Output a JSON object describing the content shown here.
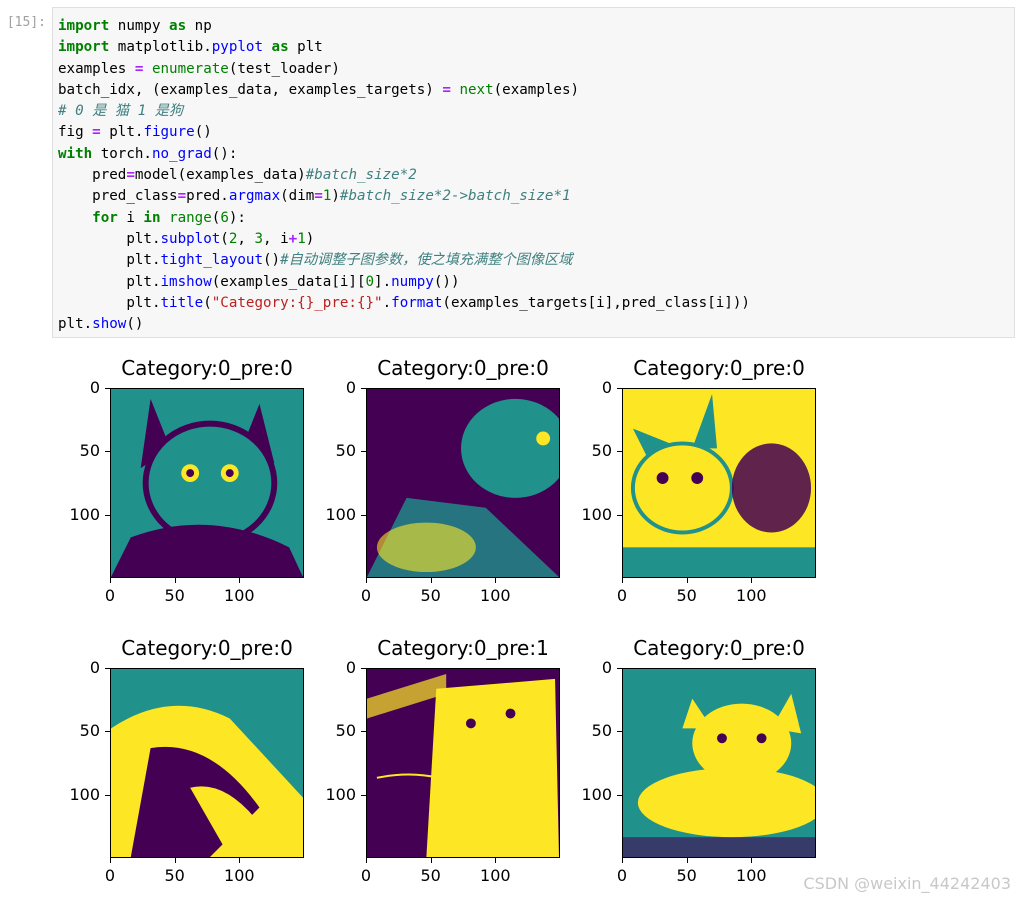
{
  "cell": {
    "prompt": "[15]:",
    "code_lines": [
      [
        [
          "kw",
          "import"
        ],
        [
          "t",
          " numpy "
        ],
        [
          "kw",
          "as"
        ],
        [
          "t",
          " np"
        ]
      ],
      [
        [
          "kw",
          "import"
        ],
        [
          "t",
          " matplotlib."
        ],
        [
          "fn",
          "pyplot"
        ],
        [
          "t",
          " "
        ],
        [
          "kw",
          "as"
        ],
        [
          "t",
          " plt"
        ]
      ],
      [
        [
          "t",
          "examples "
        ],
        [
          "op",
          "="
        ],
        [
          "t",
          " "
        ],
        [
          "bi",
          "enumerate"
        ],
        [
          "t",
          "(test_loader)"
        ]
      ],
      [
        [
          "t",
          "batch_idx, (examples_data, examples_targets) "
        ],
        [
          "op",
          "="
        ],
        [
          "t",
          " "
        ],
        [
          "bi",
          "next"
        ],
        [
          "t",
          "(examples)"
        ]
      ],
      [
        [
          "cm",
          "# 0 是 猫 1 是狗"
        ]
      ],
      [
        [
          "t",
          "fig "
        ],
        [
          "op",
          "="
        ],
        [
          "t",
          " plt."
        ],
        [
          "fn",
          "figure"
        ],
        [
          "t",
          "()"
        ]
      ],
      [
        [
          "kw",
          "with"
        ],
        [
          "t",
          " torch."
        ],
        [
          "fn",
          "no_grad"
        ],
        [
          "t",
          "():"
        ]
      ],
      [
        [
          "t",
          "    pred"
        ],
        [
          "op",
          "="
        ],
        [
          "t",
          "model(examples_data)"
        ],
        [
          "cm",
          "#batch_size*2"
        ]
      ],
      [
        [
          "t",
          "    pred_class"
        ],
        [
          "op",
          "="
        ],
        [
          "t",
          "pred."
        ],
        [
          "fn",
          "argmax"
        ],
        [
          "t",
          "(dim"
        ],
        [
          "op",
          "="
        ],
        [
          "num",
          "1"
        ],
        [
          "t",
          ")"
        ],
        [
          "cm",
          "#batch_size*2->batch_size*1"
        ]
      ],
      [
        [
          "t",
          "    "
        ],
        [
          "kw",
          "for"
        ],
        [
          "t",
          " i "
        ],
        [
          "kw",
          "in"
        ],
        [
          "t",
          " "
        ],
        [
          "bi",
          "range"
        ],
        [
          "t",
          "("
        ],
        [
          "num",
          "6"
        ],
        [
          "t",
          "):"
        ]
      ],
      [
        [
          "t",
          "        plt."
        ],
        [
          "fn",
          "subplot"
        ],
        [
          "t",
          "("
        ],
        [
          "num",
          "2"
        ],
        [
          "t",
          ", "
        ],
        [
          "num",
          "3"
        ],
        [
          "t",
          ", i"
        ],
        [
          "op",
          "+"
        ],
        [
          "num",
          "1"
        ],
        [
          "t",
          ")"
        ]
      ],
      [
        [
          "t",
          "        plt."
        ],
        [
          "fn",
          "tight_layout"
        ],
        [
          "t",
          "()"
        ],
        [
          "cm",
          "#自动调整子图参数，使之填充满整个图像区域"
        ]
      ],
      [
        [
          "t",
          "        plt."
        ],
        [
          "fn",
          "imshow"
        ],
        [
          "t",
          "(examples_data[i]["
        ],
        [
          "num",
          "0"
        ],
        [
          "t",
          "]."
        ],
        [
          "fn",
          "numpy"
        ],
        [
          "t",
          "())"
        ]
      ],
      [
        [
          "t",
          "        plt."
        ],
        [
          "fn",
          "title"
        ],
        [
          "t",
          "("
        ],
        [
          "st",
          "\"Category:{}_pre:{}\""
        ],
        [
          "t",
          "."
        ],
        [
          "fn",
          "format"
        ],
        [
          "t",
          "(examples_targets[i],pred_class[i]))"
        ]
      ],
      [
        [
          "t",
          "plt."
        ],
        [
          "fn",
          "show"
        ],
        [
          "t",
          "()"
        ]
      ]
    ]
  },
  "subplots": [
    {
      "title": "Category:0_pre:0",
      "image": "cat-photo-1"
    },
    {
      "title": "Category:0_pre:0",
      "image": "cat-photo-2"
    },
    {
      "title": "Category:0_pre:0",
      "image": "cat-photo-3"
    },
    {
      "title": "Category:0_pre:0",
      "image": "cat-photo-4"
    },
    {
      "title": "Category:0_pre:1",
      "image": "cat-photo-5"
    },
    {
      "title": "Category:0_pre:0",
      "image": "cat-photo-6"
    }
  ],
  "axis": {
    "y_ticks": [
      "0",
      "50",
      "100"
    ],
    "x_ticks": [
      "0",
      "50",
      "100"
    ]
  },
  "colormap": {
    "name": "viridis",
    "dark": "#440154",
    "mid": "#21918c",
    "light": "#fde725"
  },
  "watermark": "CSDN @weixin_44242403"
}
